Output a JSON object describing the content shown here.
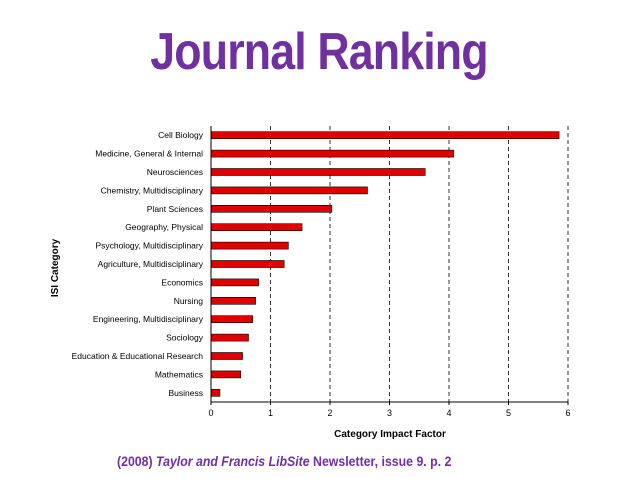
{
  "slide": {
    "title": "Journal Ranking",
    "title_color": "#7030a0",
    "footer_color": "#7030a0",
    "footer": {
      "prefix": "(2008) ",
      "publisher": "Taylor and Francis",
      "product": "LibSite",
      "suffix": " Newsletter, issue 9. p. 2"
    }
  },
  "chart_data": {
    "type": "bar",
    "orientation": "horizontal",
    "title": "",
    "xlabel": "Category Impact Factor",
    "ylabel": "ISI Category",
    "xlim": [
      0,
      6
    ],
    "xticks": [
      0,
      1,
      2,
      3,
      4,
      5,
      6
    ],
    "grid": "vertical dashed",
    "bar_color": "#e00000",
    "categories": [
      "Cell Biology",
      "Medicine, General & Internal",
      "Neurosciences",
      "Chemistry, Multidisciplinary",
      "Plant Sciences",
      "Geography, Physical",
      "Psychology, Multidisciplinary",
      "Agriculture, Multidisciplinary",
      "Economics",
      "Nursing",
      "Engineering, Multidisciplinary",
      "Sociology",
      "Education & Educational Research",
      "Mathematics",
      "Business"
    ],
    "values": [
      5.85,
      4.08,
      3.6,
      2.63,
      2.03,
      1.53,
      1.3,
      1.23,
      0.8,
      0.75,
      0.7,
      0.63,
      0.53,
      0.5,
      0.15
    ]
  }
}
